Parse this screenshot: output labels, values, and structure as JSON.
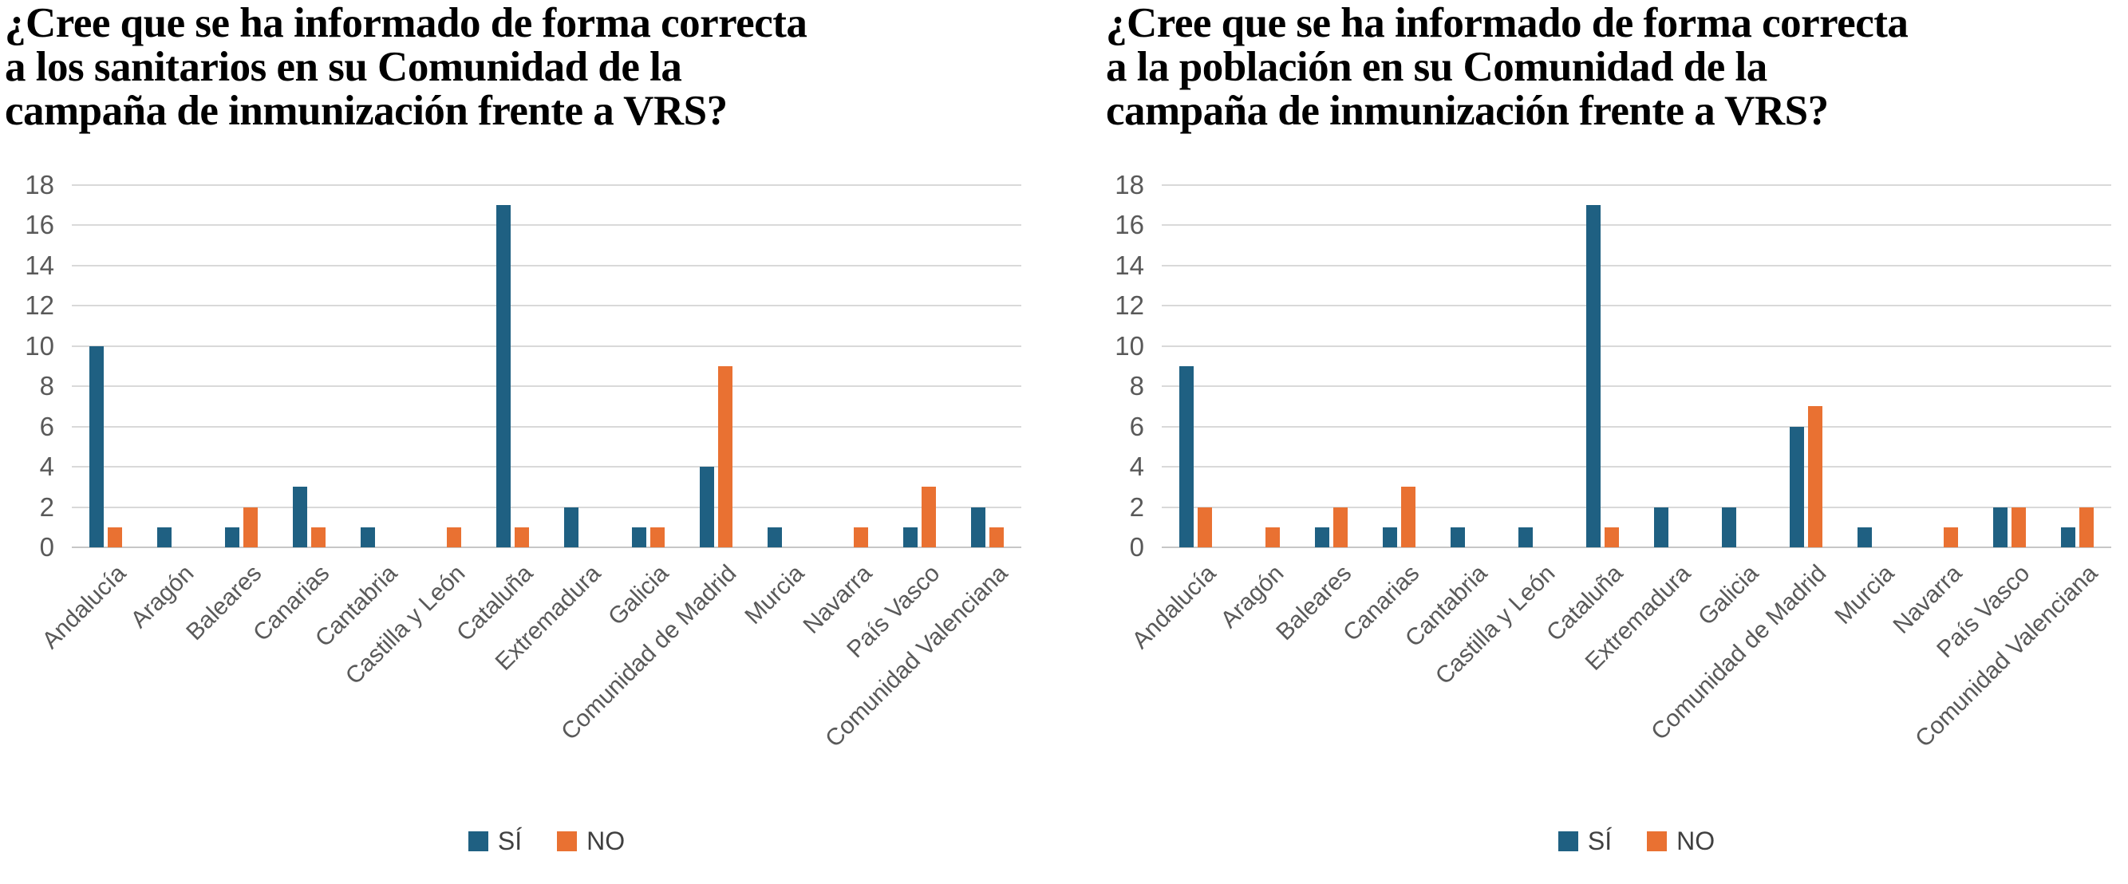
{
  "figure": {
    "background_color": "#FFFFFF",
    "grid_color": "#D9D9D9",
    "axis_text_color": "#595959"
  },
  "chart_data": [
    {
      "type": "bar",
      "title": "¿Cree que se ha informado de forma correcta a los sanitarios en su Comunidad de la campaña de inmunización frente a VRS?",
      "title_lines": [
        "¿Cree que se ha informado de forma correcta",
        "a los sanitarios en su Comunidad de la",
        "campaña de inmunización frente a VRS?"
      ],
      "categories": [
        "Andalucía",
        "Aragón",
        "Baleares",
        "Canarias",
        "Cantabria",
        "Castilla y León",
        "Cataluña",
        "Extremadura",
        "Galicia",
        "Comunidad de Madrid",
        "Murcia",
        "Navarra",
        "País Vasco",
        "Comunidad Valenciana"
      ],
      "series": [
        {
          "name": "SÍ",
          "color": "#1F6082",
          "values": [
            10,
            1,
            1,
            3,
            1,
            0,
            17,
            2,
            1,
            4,
            1,
            0,
            1,
            2
          ]
        },
        {
          "name": "NO",
          "color": "#E97132",
          "values": [
            1,
            0,
            2,
            1,
            0,
            1,
            1,
            0,
            1,
            9,
            0,
            1,
            3,
            1
          ]
        }
      ],
      "xlabel": "",
      "ylabel": "",
      "ylim": [
        0,
        18
      ],
      "ytick_step": 2,
      "grid": true,
      "legend_position": "bottom"
    },
    {
      "type": "bar",
      "title": "¿Cree que se ha informado de forma correcta a la población en su Comunidad de la campaña de inmunización frente a VRS?",
      "title_lines": [
        "¿Cree que se ha informado de forma correcta",
        "a la población en su Comunidad de la",
        "campaña de inmunización frente a VRS?"
      ],
      "categories": [
        "Andalucía",
        "Aragón",
        "Baleares",
        "Canarias",
        "Cantabria",
        "Castilla y León",
        "Cataluña",
        "Extremadura",
        "Galicia",
        "Comunidad de Madrid",
        "Murcia",
        "Navarra",
        "País Vasco",
        "Comunidad Valenciana"
      ],
      "series": [
        {
          "name": "SÍ",
          "color": "#1F6082",
          "values": [
            9,
            0,
            1,
            1,
            1,
            1,
            17,
            2,
            2,
            6,
            1,
            0,
            2,
            1
          ]
        },
        {
          "name": "NO",
          "color": "#E97132",
          "values": [
            2,
            1,
            2,
            3,
            0,
            0,
            1,
            0,
            0,
            7,
            0,
            1,
            2,
            2
          ]
        }
      ],
      "xlabel": "",
      "ylabel": "",
      "ylim": [
        0,
        18
      ],
      "ytick_step": 2,
      "grid": true,
      "legend_position": "bottom"
    }
  ]
}
